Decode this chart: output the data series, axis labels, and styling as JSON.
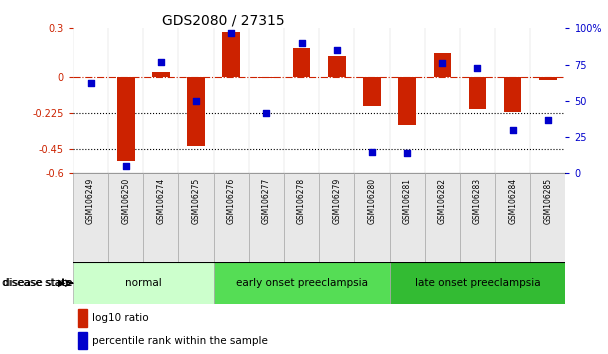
{
  "title": "GDS2080 / 27315",
  "samples": [
    "GSM106249",
    "GSM106250",
    "GSM106274",
    "GSM106275",
    "GSM106276",
    "GSM106277",
    "GSM106278",
    "GSM106279",
    "GSM106280",
    "GSM106281",
    "GSM106282",
    "GSM106283",
    "GSM106284",
    "GSM106285"
  ],
  "log10_ratio": [
    0.0,
    -0.52,
    0.03,
    -0.43,
    0.28,
    -0.01,
    0.18,
    0.13,
    -0.18,
    -0.3,
    0.15,
    -0.2,
    -0.22,
    -0.02
  ],
  "percentile_rank": [
    62,
    5,
    77,
    50,
    97,
    42,
    90,
    85,
    15,
    14,
    76,
    73,
    30,
    37
  ],
  "groups": [
    {
      "label": "normal",
      "start": 0,
      "end": 4,
      "color": "#ccffcc"
    },
    {
      "label": "early onset preeclampsia",
      "start": 4,
      "end": 9,
      "color": "#55dd55"
    },
    {
      "label": "late onset preeclampsia",
      "start": 9,
      "end": 14,
      "color": "#33bb33"
    }
  ],
  "ylim_left": [
    -0.6,
    0.3
  ],
  "ylim_right": [
    0,
    100
  ],
  "yticks_left": [
    0.3,
    0.0,
    -0.225,
    -0.45,
    -0.6
  ],
  "yticks_right": [
    100,
    75,
    50,
    25,
    0
  ],
  "hline_dotted": [
    -0.225,
    -0.45
  ],
  "bar_color": "#cc2200",
  "dot_color": "#0000cc",
  "bar_width": 0.5,
  "dot_size": 25,
  "disease_state_label": "disease state",
  "legend_bar_label": "log10 ratio",
  "legend_dot_label": "percentile rank within the sample",
  "bg_color": "#e8e8e8"
}
